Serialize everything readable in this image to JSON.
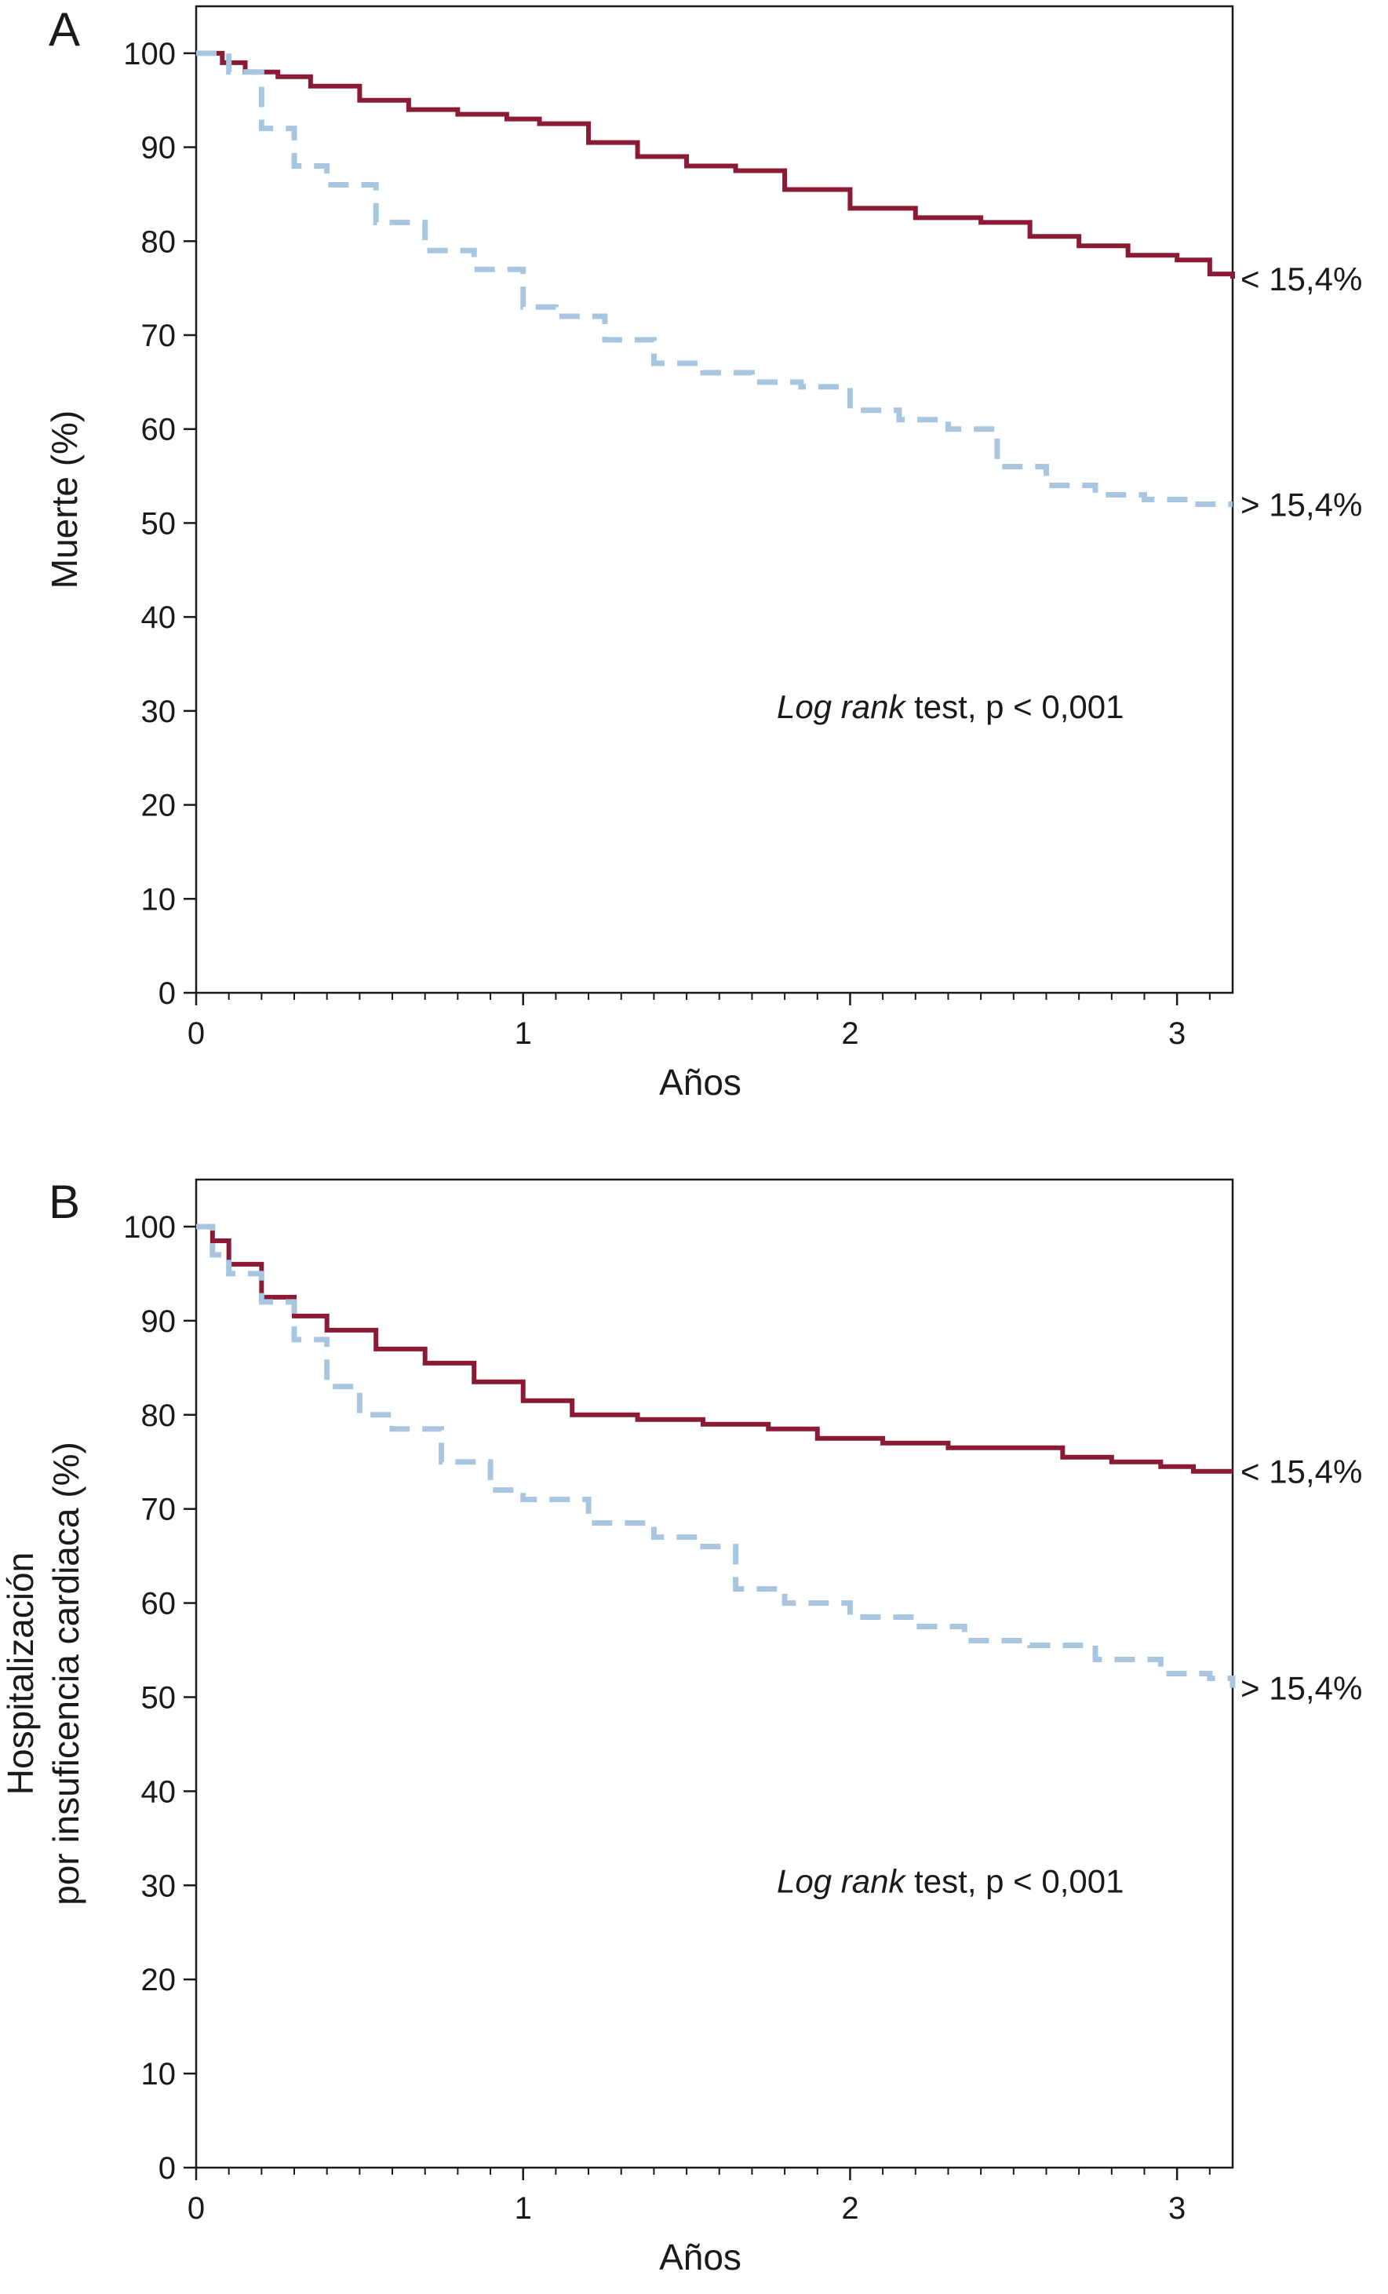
{
  "chart_data": [
    {
      "type": "line",
      "panel_label": "A",
      "xlabel": "Años",
      "ylabel": "Muerte (%)",
      "xlim": [
        0,
        3.17
      ],
      "ylim": [
        0,
        105
      ],
      "xticks": [
        "0",
        "1",
        "2",
        "3"
      ],
      "yticks": [
        "0",
        "10",
        "20",
        "30",
        "40",
        "50",
        "60",
        "70",
        "80",
        "90",
        "100"
      ],
      "annotation_italic": "Log rank",
      "annotation_rest": " test, p < 0,001",
      "series": [
        {
          "name": "< 15,4%",
          "color": "#8b1a35",
          "style": "solid",
          "x": [
            0,
            0.08,
            0.15,
            0.25,
            0.35,
            0.5,
            0.65,
            0.8,
            0.95,
            1.05,
            1.2,
            1.35,
            1.5,
            1.65,
            1.8,
            2.0,
            2.2,
            2.4,
            2.55,
            2.7,
            2.85,
            3.0,
            3.1,
            3.17
          ],
          "y": [
            100,
            99,
            98,
            97.5,
            96.5,
            95,
            94,
            93.5,
            93,
            92.5,
            90.5,
            89,
            88,
            87.5,
            85.5,
            83.5,
            82.5,
            82,
            80.5,
            79.5,
            78.5,
            78,
            76.5,
            76
          ]
        },
        {
          "name": "> 15,4%",
          "color": "#a9c6e1",
          "style": "dashed",
          "x": [
            0,
            0.1,
            0.2,
            0.3,
            0.4,
            0.55,
            0.7,
            0.85,
            1.0,
            1.1,
            1.25,
            1.4,
            1.55,
            1.7,
            1.85,
            2.0,
            2.15,
            2.3,
            2.45,
            2.6,
            2.75,
            2.9,
            3.05,
            3.17
          ],
          "y": [
            100,
            98,
            92,
            88,
            86,
            82,
            79,
            77,
            73,
            72,
            69.5,
            67,
            66,
            65,
            64.5,
            62,
            61,
            60,
            56,
            54,
            53,
            52.5,
            52,
            52
          ]
        }
      ]
    },
    {
      "type": "line",
      "panel_label": "B",
      "xlabel": "Años",
      "ylabel_line1": "Hospitalización",
      "ylabel_line2": "por insuficencia cardiaca (%)",
      "xlim": [
        0,
        3.17
      ],
      "ylim": [
        0,
        105
      ],
      "xticks": [
        "0",
        "1",
        "2",
        "3"
      ],
      "yticks": [
        "0",
        "10",
        "20",
        "30",
        "40",
        "50",
        "60",
        "70",
        "80",
        "90",
        "100"
      ],
      "annotation_italic": "Log rank",
      "annotation_rest": " test, p < 0,001",
      "series": [
        {
          "name": "< 15,4%",
          "color": "#8b1a35",
          "style": "solid",
          "x": [
            0,
            0.05,
            0.1,
            0.2,
            0.3,
            0.4,
            0.55,
            0.7,
            0.85,
            1.0,
            1.15,
            1.35,
            1.55,
            1.75,
            1.9,
            2.1,
            2.3,
            2.5,
            2.65,
            2.8,
            2.95,
            3.05,
            3.17
          ],
          "y": [
            100,
            98.5,
            96,
            92.5,
            90.5,
            89,
            87,
            85.5,
            83.5,
            81.5,
            80,
            79.5,
            79,
            78.5,
            77.5,
            77,
            76.5,
            76.5,
            75.5,
            75,
            74.5,
            74,
            74
          ]
        },
        {
          "name": "> 15,4%",
          "color": "#a9c6e1",
          "style": "dashed",
          "x": [
            0,
            0.05,
            0.1,
            0.2,
            0.3,
            0.4,
            0.5,
            0.6,
            0.75,
            0.9,
            1.0,
            1.2,
            1.4,
            1.55,
            1.65,
            1.8,
            2.0,
            2.2,
            2.35,
            2.55,
            2.75,
            2.95,
            3.1,
            3.17
          ],
          "y": [
            100,
            97,
            95,
            92,
            88,
            83,
            80,
            78.5,
            75,
            72,
            71,
            68.5,
            67,
            66,
            61.5,
            60,
            58.5,
            57.5,
            56,
            55.5,
            54,
            52.5,
            52,
            51
          ]
        }
      ]
    }
  ]
}
